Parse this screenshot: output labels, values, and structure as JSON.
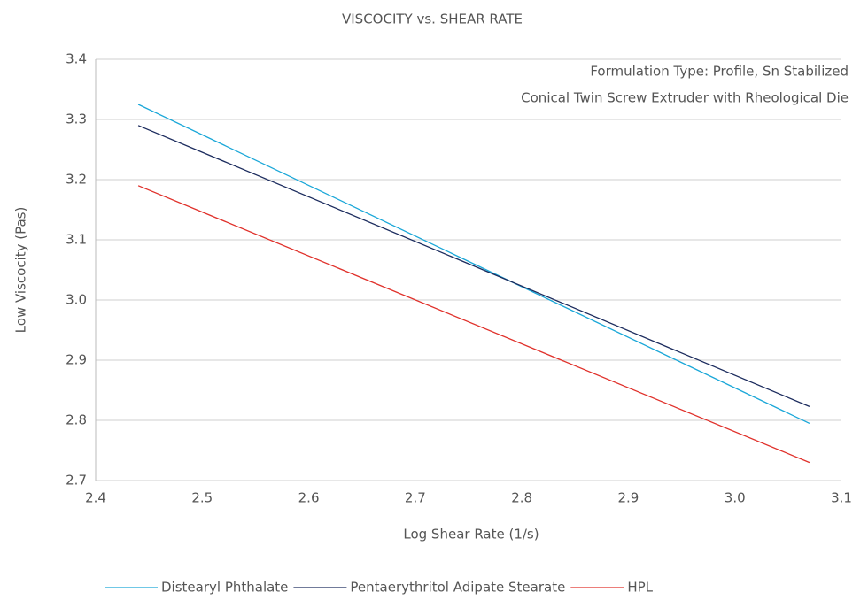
{
  "chart_data": {
    "type": "line",
    "title": "VISCOCITY vs. SHEAR RATE",
    "xlabel": "Log Shear Rate (1/s)",
    "ylabel": "Low Viscocity (Pas)",
    "annotations": [
      "Formulation Type: Profile, Sn Stabilized",
      "Conical Twin Screw Extruder with Rheological Die"
    ],
    "x": [
      2.44,
      3.07
    ],
    "series": [
      {
        "name": "Distearyl Phthalate",
        "color": "#1aa7d8",
        "values": [
          3.325,
          2.795
        ]
      },
      {
        "name": "Pentaerythritol Adipate Stearate",
        "color": "#1c2c5e",
        "values": [
          3.29,
          2.823
        ]
      },
      {
        "name": "HPL",
        "color": "#e0312b",
        "values": [
          3.19,
          2.73
        ]
      }
    ],
    "xlim": [
      2.4,
      3.1
    ],
    "xticks": [
      2.4,
      2.5,
      2.6,
      2.7,
      2.8,
      2.9,
      {
        "value": 3,
        "label": "3.0"
      },
      3.1
    ],
    "ylim": [
      2.7,
      3.4
    ],
    "yticks": [
      2.7,
      2.8,
      2.9,
      {
        "value": 3,
        "label": "3.0"
      },
      3.1,
      3.2,
      3.3,
      3.4
    ],
    "grid": true,
    "legend": "bottom"
  }
}
